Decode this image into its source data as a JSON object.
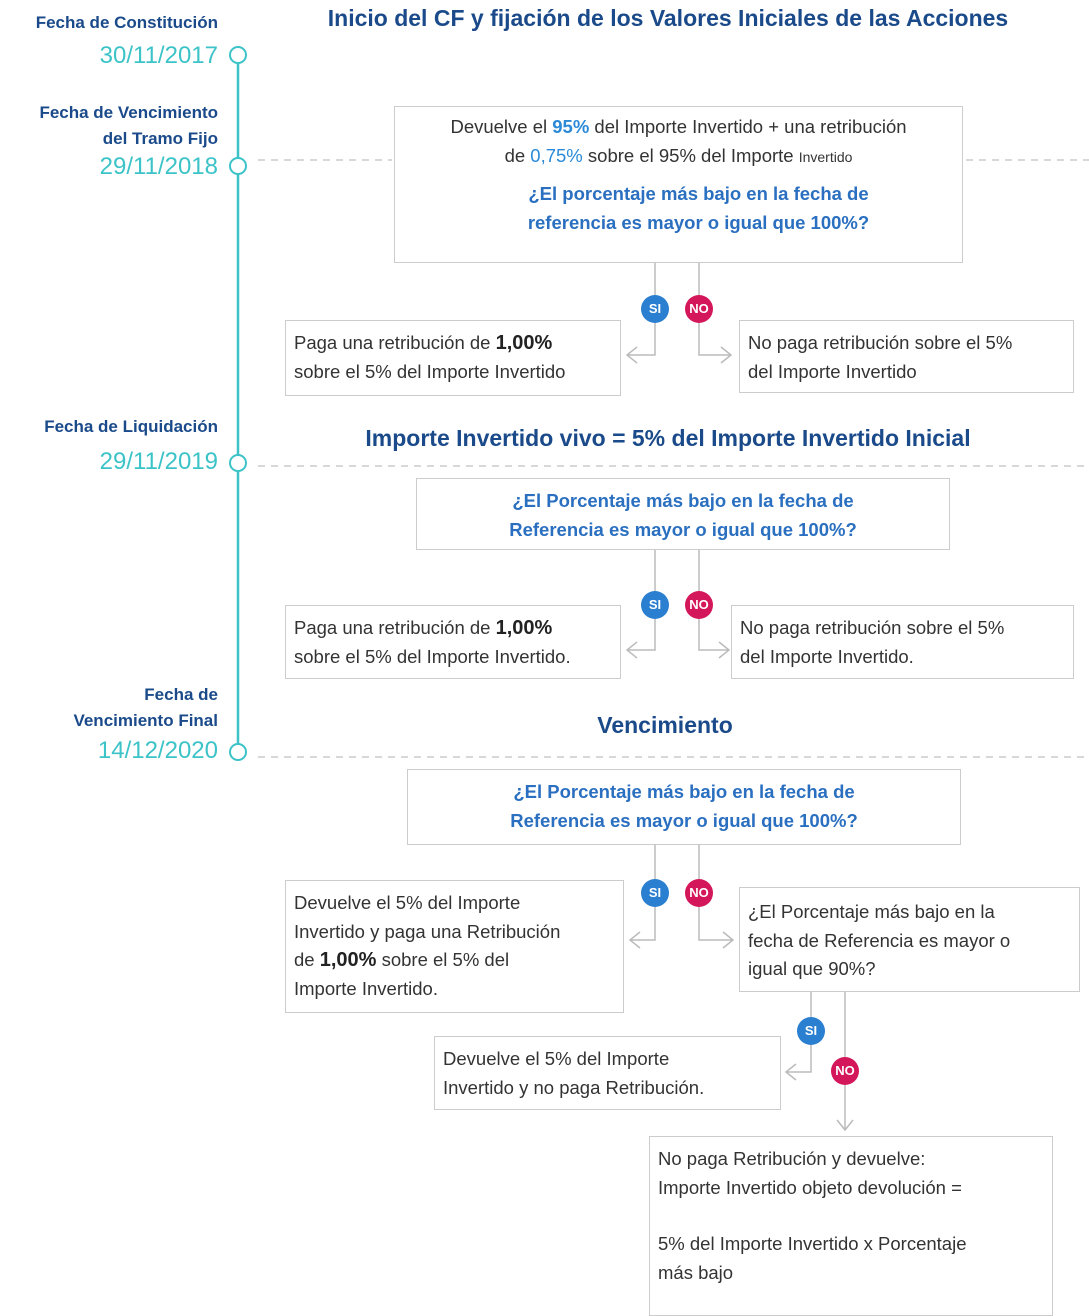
{
  "timeline": [
    {
      "label": [
        "Fecha de Constitución"
      ],
      "date": "30/11/2017"
    },
    {
      "label": [
        "Fecha de Vencimiento",
        "del Tramo Fijo"
      ],
      "date": "29/11/2018"
    },
    {
      "label": [
        "Fecha de Liquidación"
      ],
      "date": "29/11/2019"
    },
    {
      "label": [
        "Fecha de",
        "Vencimiento Final"
      ],
      "date": "14/12/2020"
    }
  ],
  "headings": [
    "Inicio del CF y fijación de los Valores Iniciales de las Acciones",
    "Importe Invertido vivo = 5% del Importe Invertido Inicial",
    "Vencimiento"
  ],
  "badges": {
    "yes": "SI",
    "no": "NO"
  },
  "nodes": [
    {
      "lines": [
        [
          "Devuelve el ",
          "95%",
          " del Importe Invertido + una retribución"
        ],
        [
          "de ",
          "0,75%",
          " sobre el 95% del Importe ",
          "Invertido"
        ]
      ],
      "question": [
        "¿El porcentaje más bajo en la fecha de",
        "referencia es mayor o igual que 100%?"
      ]
    },
    {
      "lines": [
        [
          "Paga una retribución de ",
          "1,00%"
        ],
        [
          "sobre el 5% del Importe Invertido"
        ]
      ]
    },
    {
      "lines": [
        [
          "No paga retribución sobre el 5%"
        ],
        [
          "del Importe Invertido"
        ]
      ]
    },
    {
      "lines": [
        [
          "¿El Porcentaje más bajo en la fecha de"
        ],
        [
          "Referencia es mayor o igual que 100%?"
        ]
      ]
    },
    {
      "lines": [
        [
          "Paga una retribución de ",
          "1,00%"
        ],
        [
          "sobre el 5% del Importe Invertido."
        ]
      ]
    },
    {
      "lines": [
        [
          "No paga retribución sobre el 5%"
        ],
        [
          "del Importe Invertido."
        ]
      ]
    },
    {
      "lines": [
        [
          "¿El Porcentaje más bajo en la fecha de"
        ],
        [
          "Referencia es mayor o igual que 100%?"
        ]
      ]
    },
    {
      "lines": [
        [
          "Devuelve el 5% del Importe"
        ],
        [
          "Invertido y paga una Retribución"
        ],
        [
          "de ",
          "1,00%",
          " sobre el 5% del"
        ],
        [
          "Importe Invertido."
        ]
      ]
    },
    {
      "lines": [
        [
          "¿El Porcentaje más bajo en la"
        ],
        [
          "fecha de Referencia es mayor o"
        ],
        [
          "igual que 90%?"
        ]
      ]
    },
    {
      "lines": [
        [
          "Devuelve el 5% del Importe"
        ],
        [
          "Invertido y no paga Retribución."
        ]
      ]
    },
    {
      "lines": [
        [
          "No paga Retribución y devuelve:"
        ],
        [
          "Importe Invertido objeto devolución ="
        ]
      ],
      "lines_2": [
        [
          "5% del Importe Invertido x Porcentaje"
        ],
        [
          "más bajo"
        ]
      ]
    }
  ]
}
